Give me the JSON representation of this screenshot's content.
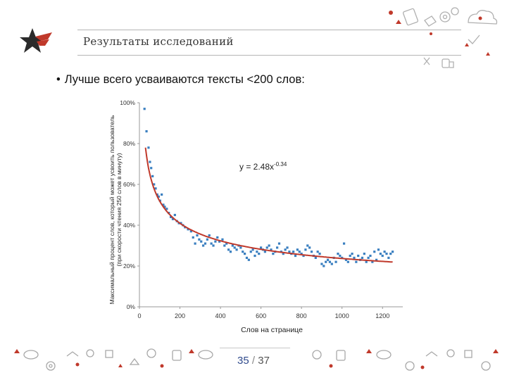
{
  "slide": {
    "title": "Результаты исследований",
    "bullet": "Лучше всего усваиваются тексты <200 слов:",
    "page_current": "35",
    "page_separator": "/",
    "page_total": "37"
  },
  "colors": {
    "accent_red": "#c0392b",
    "logo_dark": "#2b2b2b",
    "scatter_blue": "#3a7fc0",
    "fit_line": "#c0392b",
    "page_number": "#2f4a8c"
  },
  "icons": [
    "star-logo-icon",
    "doodle-icons-top",
    "doodle-icons-footer"
  ],
  "chart_data": {
    "type": "scatter",
    "xlabel": "Слов на странице",
    "ylabel_lines": [
      "Максимальный процент слов, который может усвоить пользователь",
      "(при скорости чтения 250 слов в минуту)"
    ],
    "equation": "y = 2.48x",
    "equation_exponent": "-0.34",
    "xlim": [
      0,
      1300
    ],
    "ylim": [
      0,
      100
    ],
    "x_ticks": [
      "0",
      "200",
      "400",
      "600",
      "800",
      "1000",
      "1200"
    ],
    "y_ticks": [
      "0%",
      "20%",
      "40%",
      "60%",
      "80%",
      "100%"
    ],
    "grid": false,
    "fit": {
      "a": 2.48,
      "b": -0.34,
      "x_start": 30,
      "x_end": 1250
    },
    "points": [
      [
        25,
        97
      ],
      [
        35,
        86
      ],
      [
        45,
        78
      ],
      [
        52,
        71
      ],
      [
        58,
        68
      ],
      [
        65,
        64
      ],
      [
        72,
        60
      ],
      [
        80,
        58
      ],
      [
        88,
        55
      ],
      [
        95,
        54
      ],
      [
        102,
        52
      ],
      [
        110,
        55
      ],
      [
        118,
        50
      ],
      [
        125,
        49
      ],
      [
        135,
        48
      ],
      [
        145,
        46
      ],
      [
        155,
        44
      ],
      [
        165,
        43
      ],
      [
        175,
        45
      ],
      [
        185,
        42
      ],
      [
        195,
        41
      ],
      [
        205,
        41
      ],
      [
        215,
        40
      ],
      [
        225,
        39
      ],
      [
        240,
        38
      ],
      [
        255,
        37
      ],
      [
        265,
        34
      ],
      [
        275,
        31
      ],
      [
        285,
        35
      ],
      [
        295,
        33
      ],
      [
        305,
        32
      ],
      [
        315,
        30
      ],
      [
        325,
        31
      ],
      [
        335,
        33
      ],
      [
        345,
        35
      ],
      [
        355,
        31
      ],
      [
        365,
        30
      ],
      [
        375,
        32
      ],
      [
        385,
        34
      ],
      [
        395,
        32
      ],
      [
        410,
        33
      ],
      [
        420,
        30
      ],
      [
        430,
        31
      ],
      [
        440,
        28
      ],
      [
        450,
        27
      ],
      [
        460,
        30
      ],
      [
        470,
        29
      ],
      [
        480,
        28
      ],
      [
        490,
        30
      ],
      [
        500,
        29
      ],
      [
        510,
        27
      ],
      [
        520,
        26
      ],
      [
        530,
        24
      ],
      [
        540,
        23
      ],
      [
        550,
        27
      ],
      [
        560,
        28
      ],
      [
        570,
        25
      ],
      [
        580,
        27
      ],
      [
        590,
        26
      ],
      [
        600,
        29
      ],
      [
        610,
        28
      ],
      [
        620,
        27
      ],
      [
        630,
        29
      ],
      [
        640,
        30
      ],
      [
        650,
        28
      ],
      [
        660,
        26
      ],
      [
        670,
        27
      ],
      [
        680,
        29
      ],
      [
        690,
        31
      ],
      [
        700,
        27
      ],
      [
        710,
        26
      ],
      [
        720,
        28
      ],
      [
        730,
        29
      ],
      [
        740,
        27
      ],
      [
        750,
        26
      ],
      [
        760,
        27
      ],
      [
        770,
        25
      ],
      [
        780,
        28
      ],
      [
        790,
        27
      ],
      [
        800,
        26
      ],
      [
        810,
        25
      ],
      [
        820,
        28
      ],
      [
        830,
        30
      ],
      [
        840,
        29
      ],
      [
        850,
        27
      ],
      [
        860,
        25
      ],
      [
        870,
        24
      ],
      [
        880,
        27
      ],
      [
        890,
        26
      ],
      [
        900,
        21
      ],
      [
        910,
        20
      ],
      [
        920,
        22
      ],
      [
        930,
        23
      ],
      [
        940,
        22
      ],
      [
        950,
        21
      ],
      [
        960,
        24
      ],
      [
        970,
        22
      ],
      [
        980,
        26
      ],
      [
        990,
        25
      ],
      [
        1000,
        24
      ],
      [
        1010,
        31
      ],
      [
        1020,
        23
      ],
      [
        1030,
        22
      ],
      [
        1040,
        25
      ],
      [
        1050,
        26
      ],
      [
        1060,
        24
      ],
      [
        1070,
        22
      ],
      [
        1080,
        25
      ],
      [
        1090,
        23
      ],
      [
        1100,
        24
      ],
      [
        1110,
        26
      ],
      [
        1120,
        22
      ],
      [
        1130,
        24
      ],
      [
        1140,
        25
      ],
      [
        1150,
        22
      ],
      [
        1160,
        27
      ],
      [
        1170,
        23
      ],
      [
        1180,
        28
      ],
      [
        1190,
        26
      ],
      [
        1200,
        25
      ],
      [
        1210,
        27
      ],
      [
        1220,
        26
      ],
      [
        1230,
        24
      ],
      [
        1240,
        26
      ],
      [
        1250,
        27
      ]
    ]
  }
}
